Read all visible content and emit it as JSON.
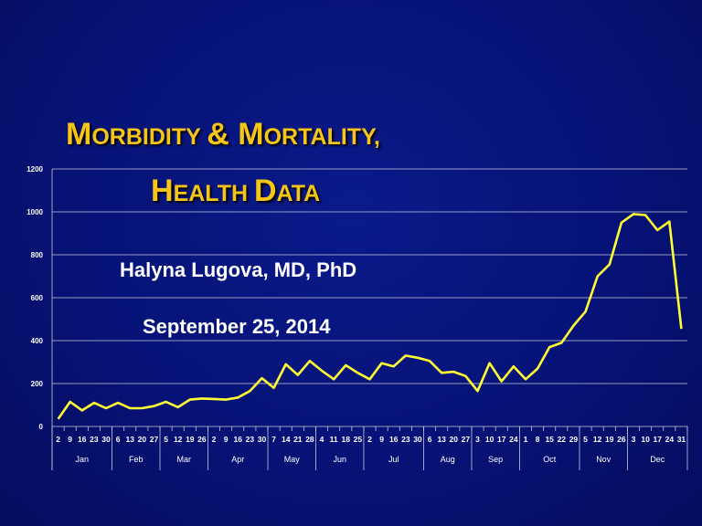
{
  "slide": {
    "title_line1": [
      {
        "text": "M",
        "size": "big"
      },
      {
        "text": "ORBIDITY ",
        "size": "sm"
      },
      {
        "text": "& M",
        "size": "big"
      },
      {
        "text": "ORTALITY,",
        "size": "sm"
      }
    ],
    "title_line2": [
      {
        "text": "H",
        "size": "big"
      },
      {
        "text": "EALTH ",
        "size": "sm"
      },
      {
        "text": "D",
        "size": "big"
      },
      {
        "text": "ATA",
        "size": "sm"
      }
    ],
    "author": "Halyna Lugova, MD, PhD",
    "date": "September 25, 2014"
  },
  "chart_data": {
    "type": "line",
    "title": "",
    "xlabel": "",
    "ylabel": "",
    "ylim": [
      0,
      1200
    ],
    "yticks": [
      0,
      200,
      400,
      600,
      800,
      1000,
      1200
    ],
    "grid": true,
    "line_color": "#ffff33",
    "grid_color": "#c8c8d8",
    "x_day_labels": [
      "2",
      "9",
      "16",
      "23",
      "30",
      "6",
      "13",
      "20",
      "27",
      "5",
      "12",
      "19",
      "26",
      "2",
      "9",
      "16",
      "23",
      "30",
      "7",
      "14",
      "21",
      "28",
      "4",
      "11",
      "18",
      "25",
      "2",
      "9",
      "16",
      "23",
      "30",
      "6",
      "13",
      "20",
      "27",
      "3",
      "10",
      "17",
      "24",
      "1",
      "8",
      "15",
      "22",
      "29",
      "5",
      "12",
      "19",
      "26",
      "3",
      "10",
      "17",
      "24",
      "31"
    ],
    "months": [
      {
        "name": "Jan",
        "count": 5
      },
      {
        "name": "Feb",
        "count": 4
      },
      {
        "name": "Mar",
        "count": 4
      },
      {
        "name": "Apr",
        "count": 5
      },
      {
        "name": "May",
        "count": 4
      },
      {
        "name": "Jun",
        "count": 4
      },
      {
        "name": "Jul",
        "count": 5
      },
      {
        "name": "Aug",
        "count": 4
      },
      {
        "name": "Sep",
        "count": 4
      },
      {
        "name": "Oct",
        "count": 5
      },
      {
        "name": "Nov",
        "count": 4
      },
      {
        "name": "Dec",
        "count": 5
      }
    ],
    "values": [
      35,
      115,
      75,
      110,
      85,
      110,
      85,
      85,
      95,
      115,
      90,
      125,
      130,
      128,
      125,
      135,
      165,
      225,
      180,
      290,
      240,
      305,
      260,
      220,
      285,
      250,
      220,
      295,
      280,
      330,
      320,
      305,
      250,
      255,
      235,
      165,
      295,
      210,
      280,
      220,
      270,
      370,
      390,
      470,
      535,
      700,
      755,
      950,
      990,
      985,
      915,
      955,
      455
    ]
  }
}
